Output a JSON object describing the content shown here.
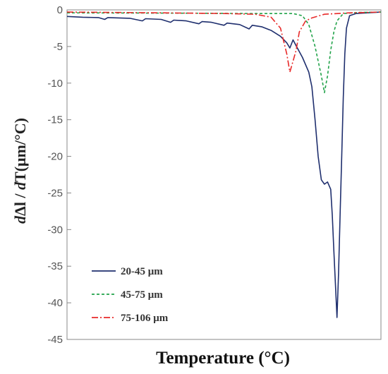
{
  "chart_data": {
    "type": "line",
    "title": "",
    "xlabel": "Temperature (°C)",
    "ylabel_parts": [
      "d",
      "Δl / ",
      "d",
      "T(μm/°C)"
    ],
    "ylim": [
      -45,
      0
    ],
    "yticks": [
      0,
      -5,
      -10,
      -15,
      -20,
      -25,
      -30,
      -35,
      -40,
      -45
    ],
    "y_tick_labels": [
      "0",
      "-5",
      "-10",
      "-15",
      "-20",
      "-25",
      "-30",
      "-35",
      "-40",
      "-45"
    ],
    "x_tick_labels": "none shown",
    "grid": false,
    "legend_position": "bottom-left",
    "series": [
      {
        "name": "20-45 μm",
        "color": "#1f2f6e",
        "dash": "solid",
        "points": [
          [
            0.0,
            -0.9
          ],
          [
            0.05,
            -1.0
          ],
          [
            0.1,
            -1.05
          ],
          [
            0.12,
            -1.3
          ],
          [
            0.13,
            -1.05
          ],
          [
            0.2,
            -1.15
          ],
          [
            0.24,
            -1.5
          ],
          [
            0.25,
            -1.2
          ],
          [
            0.3,
            -1.3
          ],
          [
            0.33,
            -1.7
          ],
          [
            0.34,
            -1.4
          ],
          [
            0.38,
            -1.5
          ],
          [
            0.42,
            -1.9
          ],
          [
            0.43,
            -1.6
          ],
          [
            0.46,
            -1.7
          ],
          [
            0.5,
            -2.1
          ],
          [
            0.51,
            -1.8
          ],
          [
            0.55,
            -2.0
          ],
          [
            0.58,
            -2.6
          ],
          [
            0.59,
            -2.1
          ],
          [
            0.62,
            -2.3
          ],
          [
            0.65,
            -2.8
          ],
          [
            0.68,
            -3.6
          ],
          [
            0.7,
            -4.5
          ],
          [
            0.71,
            -5.2
          ],
          [
            0.72,
            -4.1
          ],
          [
            0.73,
            -4.9
          ],
          [
            0.75,
            -6.5
          ],
          [
            0.77,
            -8.5
          ],
          [
            0.78,
            -10.5
          ],
          [
            0.79,
            -15.0
          ],
          [
            0.8,
            -20.0
          ],
          [
            0.81,
            -23.2
          ],
          [
            0.82,
            -23.8
          ],
          [
            0.83,
            -23.5
          ],
          [
            0.84,
            -24.5
          ],
          [
            0.845,
            -28.0
          ],
          [
            0.85,
            -33.0
          ],
          [
            0.855,
            -37.5
          ],
          [
            0.86,
            -42.0
          ],
          [
            0.865,
            -36.0
          ],
          [
            0.87,
            -28.0
          ],
          [
            0.875,
            -20.0
          ],
          [
            0.88,
            -12.0
          ],
          [
            0.885,
            -6.0
          ],
          [
            0.89,
            -2.5
          ],
          [
            0.9,
            -0.8
          ],
          [
            0.92,
            -0.5
          ],
          [
            1.0,
            -0.3
          ]
        ]
      },
      {
        "name": "45-75 μm",
        "color": "#22a34a",
        "dash": "4,3",
        "points": [
          [
            0.0,
            -0.4
          ],
          [
            0.4,
            -0.45
          ],
          [
            0.6,
            -0.5
          ],
          [
            0.72,
            -0.5
          ],
          [
            0.75,
            -0.8
          ],
          [
            0.77,
            -2.0
          ],
          [
            0.79,
            -5.0
          ],
          [
            0.81,
            -9.0
          ],
          [
            0.82,
            -11.3
          ],
          [
            0.83,
            -9.0
          ],
          [
            0.84,
            -5.5
          ],
          [
            0.85,
            -3.0
          ],
          [
            0.86,
            -1.5
          ],
          [
            0.88,
            -0.5
          ],
          [
            0.93,
            -0.35
          ],
          [
            1.0,
            -0.3
          ]
        ]
      },
      {
        "name": "75-106 μm",
        "color": "#e82a2a",
        "dash": "9,3,2,3",
        "points": [
          [
            0.0,
            -0.3
          ],
          [
            0.3,
            -0.4
          ],
          [
            0.5,
            -0.5
          ],
          [
            0.6,
            -0.6
          ],
          [
            0.65,
            -1.0
          ],
          [
            0.68,
            -2.5
          ],
          [
            0.7,
            -6.0
          ],
          [
            0.71,
            -8.5
          ],
          [
            0.72,
            -7.0
          ],
          [
            0.73,
            -5.5
          ],
          [
            0.74,
            -3.0
          ],
          [
            0.76,
            -1.5
          ],
          [
            0.78,
            -1.1
          ],
          [
            0.82,
            -0.6
          ],
          [
            0.9,
            -0.4
          ],
          [
            1.0,
            -0.3
          ]
        ]
      }
    ]
  },
  "legend": [
    {
      "label": "20-45 μm",
      "color": "#1f2f6e",
      "dash": "solid"
    },
    {
      "label": "45-75 μm",
      "color": "#22a34a",
      "dash": "4,3"
    },
    {
      "label": "75-106 μm",
      "color": "#e82a2a",
      "dash": "9,3,2,3"
    }
  ],
  "colors": {
    "axis": "#888888"
  }
}
